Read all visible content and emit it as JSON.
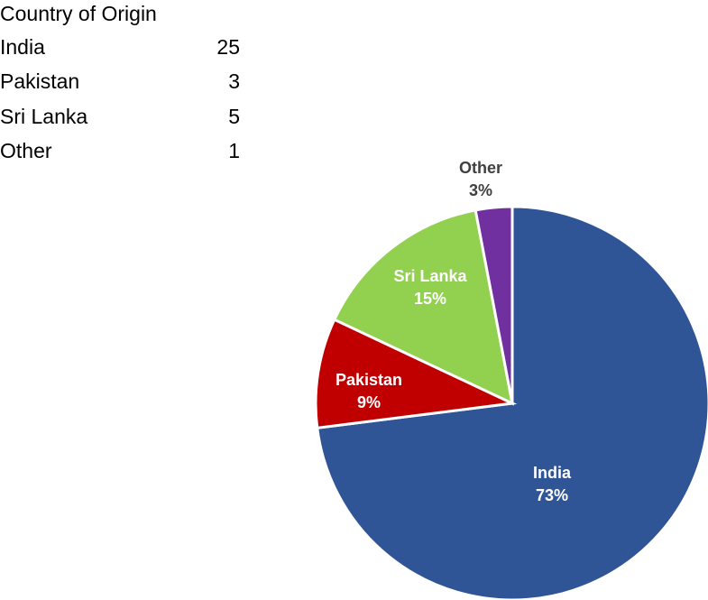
{
  "table": {
    "header": "Country of Origin",
    "rows": [
      [
        "India",
        25
      ],
      [
        "Pakistan",
        3
      ],
      [
        "Sri Lanka",
        5
      ],
      [
        "Other",
        1
      ]
    ]
  },
  "chart_data": {
    "type": "pie",
    "categories": [
      "India",
      "Pakistan",
      "Sri Lanka",
      "Other"
    ],
    "values": [
      73,
      9,
      15,
      3
    ],
    "value_labels": [
      "73%",
      "9%",
      "15%",
      "3%"
    ],
    "colors": [
      "#2f5597",
      "#c00000",
      "#92d050",
      "#7030a0"
    ]
  }
}
